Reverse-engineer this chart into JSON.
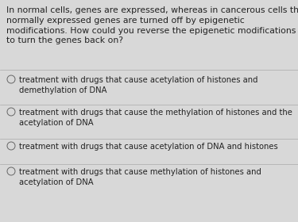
{
  "background_color": "#d8d8d8",
  "question_text": "In normal cells, genes are expressed, whereas in cancerous cells the\nnormally expressed genes are turned off by epigenetic\nmodifications. How could you reverse the epigenetic modifications\nto turn the genes back on?",
  "options": [
    "treatment with drugs that cause acetylation of histones and\ndemethylation of DNA",
    "treatment with drugs that cause the methylation of histones and the\nacetylation of DNA",
    "treatment with drugs that cause acetylation of DNA and histones",
    "treatment with drugs that cause methylation of histones and\nacetylation of DNA"
  ],
  "question_fontsize": 7.8,
  "option_fontsize": 7.2,
  "text_color": "#222222",
  "circle_color": "#666666",
  "divider_color": "#aaaaaa",
  "figsize": [
    3.75,
    2.8
  ],
  "dpi": 100
}
